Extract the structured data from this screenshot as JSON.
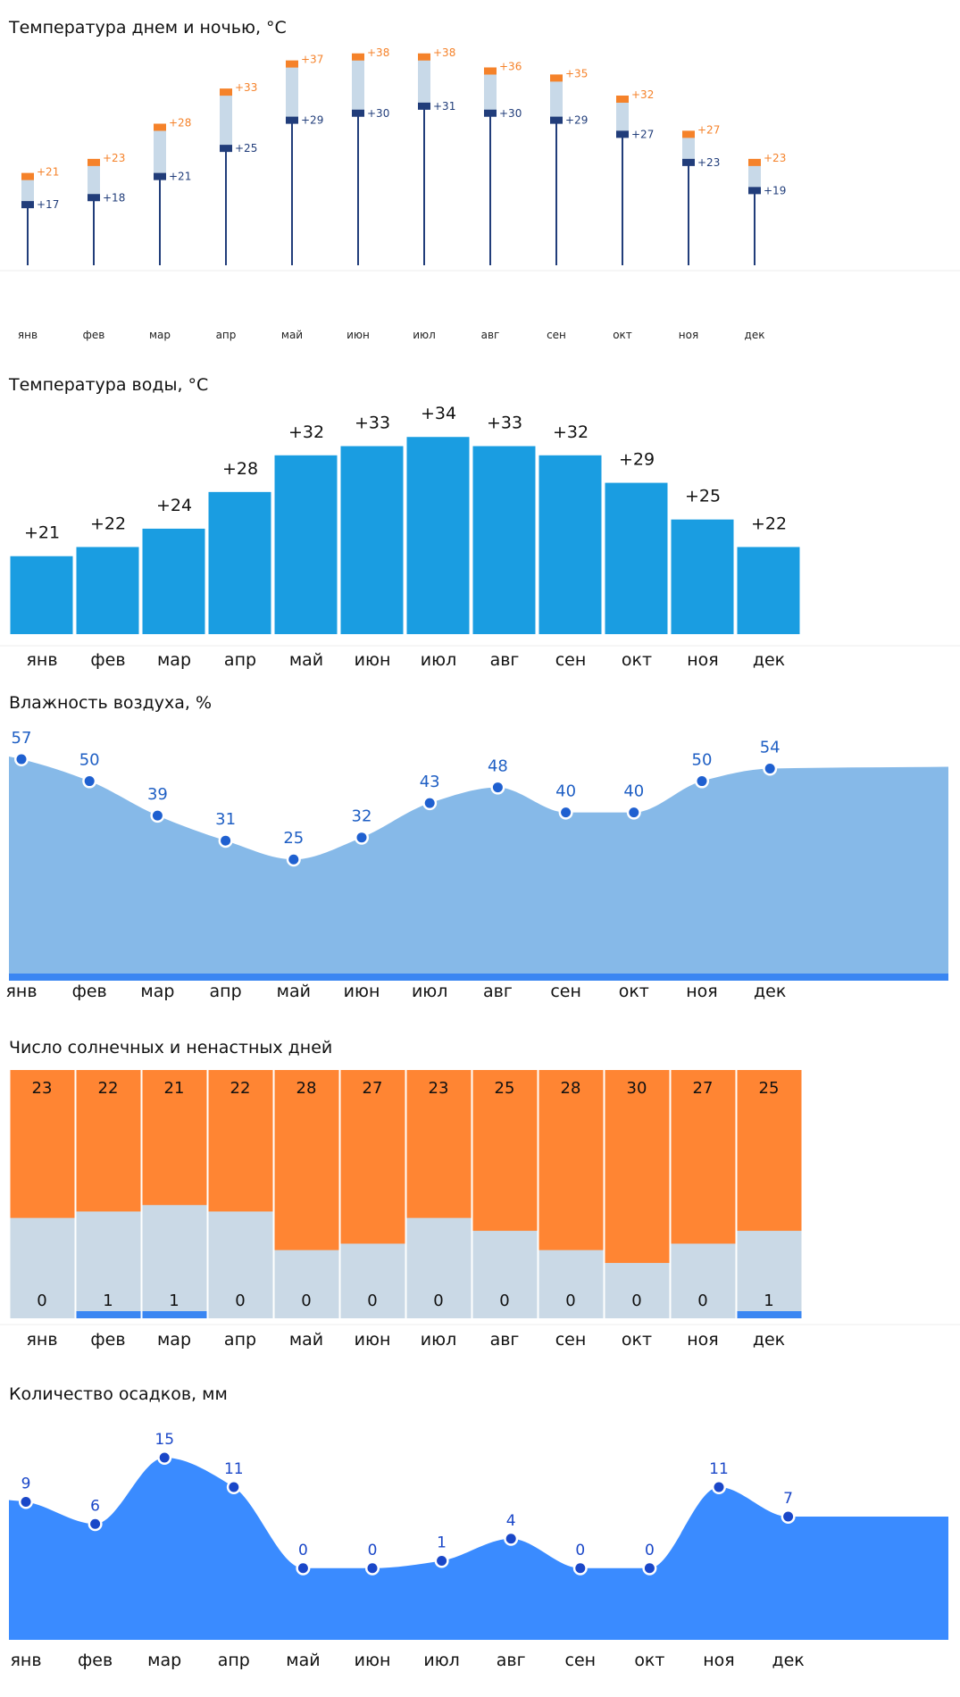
{
  "sections": {
    "temp": {
      "title": "Температура днем и ночью, °С"
    },
    "water": {
      "title": "Температура воды, °С"
    },
    "humidity": {
      "title": "Влажность воздуха, %"
    },
    "sunny": {
      "title": "Число солнечных и ненастных дней"
    },
    "precip": {
      "title": "Количество осадков, мм"
    }
  },
  "colors": {
    "day": "#f5822a",
    "night": "#213d7a",
    "range": "#c8d9e8",
    "water": "#1a9de1",
    "humidity_fill": "#86b9e8",
    "humidity_base": "#3a86f2",
    "humidity_point": "#1f60d0",
    "humidity_label": "#1f5fc4",
    "sunny": "#ff8533",
    "rainy_bg": "#cad9e6",
    "rainy_bar": "#3a86f2",
    "precip_fill": "#3a8bff",
    "precip_point": "#1a47c8",
    "precip_label": "#1a47c8",
    "axis_line": "#eeeeee"
  },
  "chart_data": [
    {
      "id": "temp",
      "type": "bar",
      "title": "Температура днем и ночью, °С",
      "categories": [
        "янв",
        "фев",
        "мар",
        "апр",
        "май",
        "июн",
        "июл",
        "авг",
        "сен",
        "окт",
        "ноя",
        "дек"
      ],
      "series": [
        {
          "values": [
            21,
            23,
            28,
            33,
            37,
            38,
            38,
            36,
            35,
            32,
            27,
            23
          ],
          "labels": [
            "+21",
            "+23",
            "+28",
            "+33",
            "+37",
            "+38",
            "+38",
            "+36",
            "+35",
            "+32",
            "+27",
            "+23"
          ]
        },
        {
          "values": [
            17,
            18,
            21,
            25,
            29,
            30,
            31,
            30,
            29,
            27,
            23,
            19
          ],
          "labels": [
            "+17",
            "+18",
            "+21",
            "+25",
            "+29",
            "+30",
            "+31",
            "+30",
            "+29",
            "+27",
            "+23",
            "+19"
          ]
        }
      ],
      "ylim": [
        8,
        40
      ]
    },
    {
      "id": "water",
      "type": "bar",
      "title": "Температура воды, °С",
      "categories": [
        "янв",
        "фев",
        "мар",
        "апр",
        "май",
        "июн",
        "июл",
        "авг",
        "сен",
        "окт",
        "ноя",
        "дек"
      ],
      "values": [
        21,
        22,
        24,
        28,
        32,
        33,
        34,
        33,
        32,
        29,
        25,
        22
      ],
      "labels": [
        "+21",
        "+22",
        "+24",
        "+28",
        "+32",
        "+33",
        "+34",
        "+33",
        "+32",
        "+29",
        "+25",
        "+22"
      ],
      "ylim": [
        12.5,
        34.9
      ]
    },
    {
      "id": "humidity",
      "type": "area",
      "title": "Влажность воздуха, %",
      "categories": [
        "янв",
        "фев",
        "мар",
        "апр",
        "май",
        "июн",
        "июл",
        "авг",
        "сен",
        "окт",
        "ноя",
        "дек"
      ],
      "values": [
        57,
        50,
        39,
        31,
        25,
        32,
        43,
        48,
        40,
        40,
        50,
        54
      ],
      "labels": [
        "57",
        "50",
        "39",
        "31",
        "25",
        "32",
        "43",
        "48",
        "40",
        "40",
        "50",
        "54"
      ],
      "ylim": [
        -8,
        57
      ]
    },
    {
      "id": "sunny",
      "type": "bar",
      "title": "Число солнечных и ненастных дней",
      "categories": [
        "янв",
        "фев",
        "мар",
        "апр",
        "май",
        "июн",
        "июл",
        "авг",
        "сен",
        "окт",
        "ноя",
        "дек"
      ],
      "series": [
        {
          "values": [
            23,
            22,
            21,
            22,
            28,
            27,
            23,
            25,
            28,
            30,
            27,
            25
          ],
          "labels": [
            "23",
            "22",
            "21",
            "22",
            "28",
            "27",
            "23",
            "25",
            "28",
            "30",
            "27",
            "25"
          ]
        },
        {
          "values": [
            0,
            1,
            1,
            0,
            0,
            0,
            0,
            0,
            0,
            0,
            0,
            1
          ],
          "labels": [
            "0",
            "1",
            "1",
            "0",
            "0",
            "0",
            "0",
            "0",
            "0",
            "0",
            "0",
            "1"
          ]
        }
      ],
      "days_in_month": [
        31,
        28,
        31,
        30,
        31,
        30,
        31,
        31,
        30,
        31,
        30,
        31
      ]
    },
    {
      "id": "precip",
      "type": "area",
      "title": "Количество осадков, мм",
      "categories": [
        "янв",
        "фев",
        "мар",
        "апр",
        "май",
        "июн",
        "июл",
        "авг",
        "сен",
        "окт",
        "ноя",
        "дек"
      ],
      "values": [
        9,
        6,
        15,
        11,
        0,
        0,
        1,
        4,
        0,
        0,
        11,
        7
      ],
      "labels": [
        "9",
        "6",
        "15",
        "11",
        "0",
        "0",
        "1",
        "4",
        "0",
        "0",
        "11",
        "7"
      ],
      "ylim": [
        -9,
        15
      ]
    }
  ]
}
